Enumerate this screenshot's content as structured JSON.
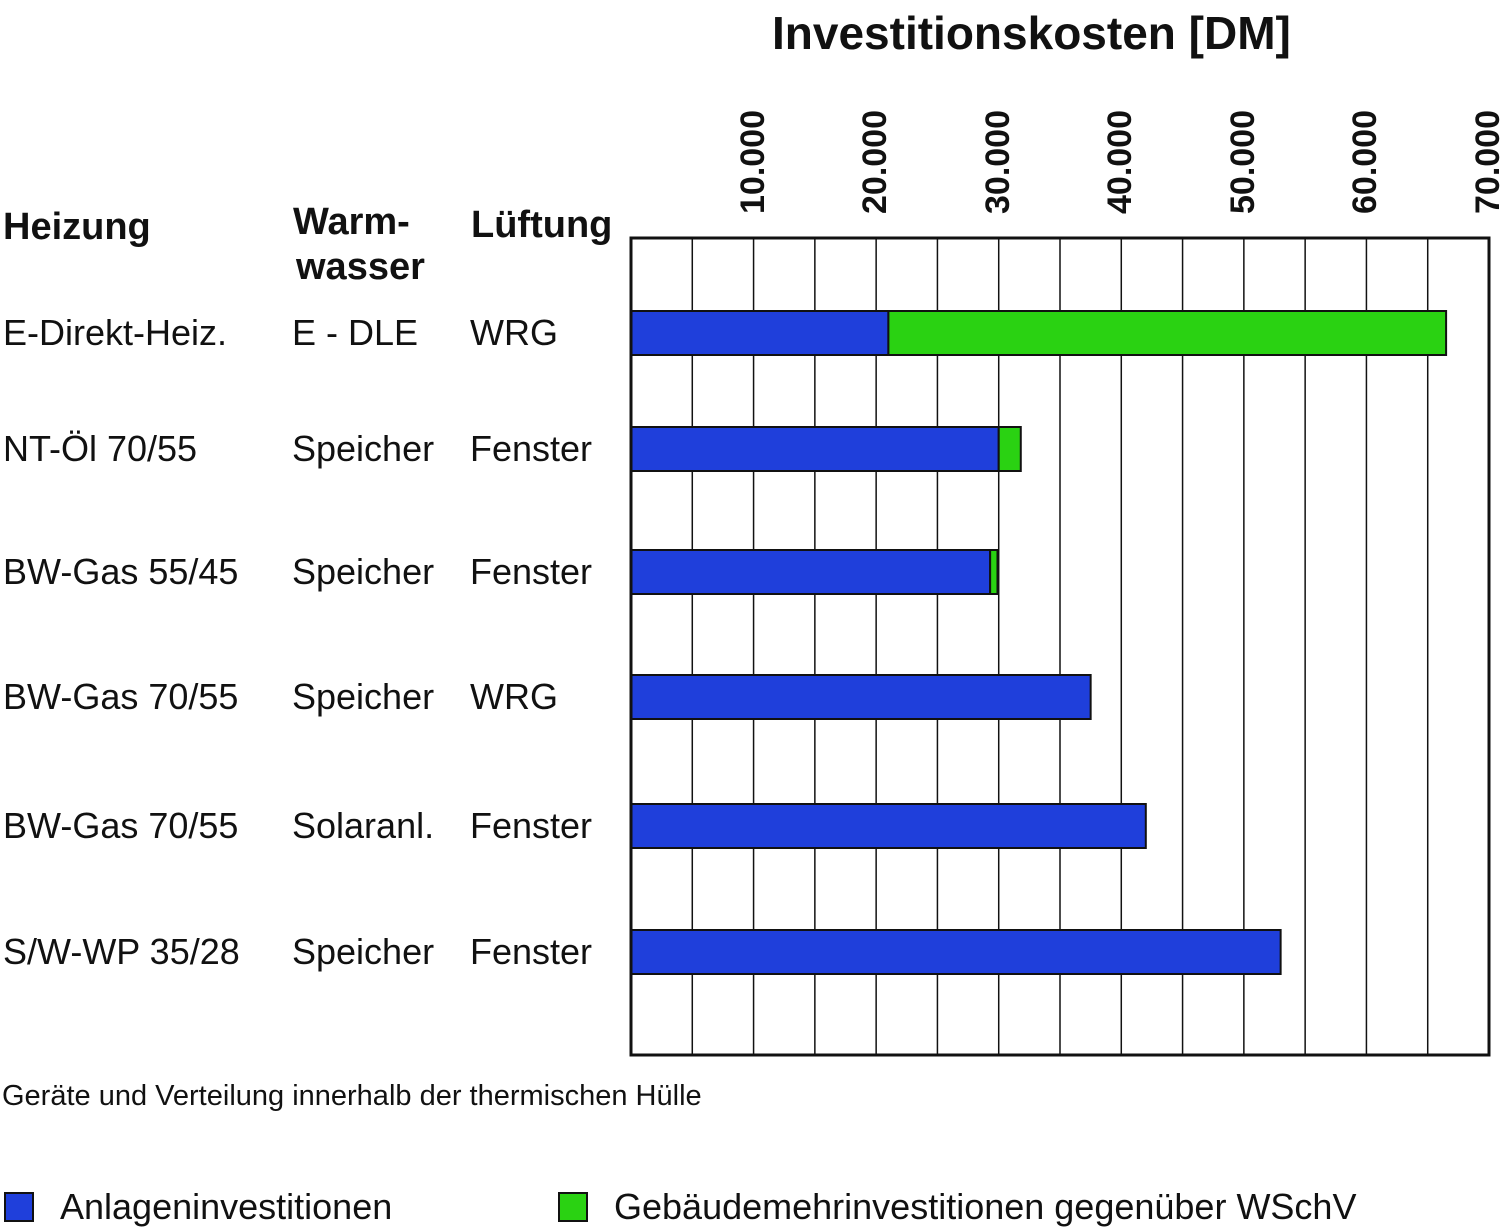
{
  "chart_data": {
    "type": "bar",
    "orientation": "horizontal",
    "stacked": true,
    "title": "Investitionskosten  [DM]",
    "xlim": [
      0,
      70000
    ],
    "x_ticks": [
      "10.000",
      "20.000",
      "30.000",
      "40.000",
      "50.000",
      "60.000",
      "70.000"
    ],
    "x_tick_values": [
      10000,
      20000,
      30000,
      40000,
      50000,
      60000,
      70000
    ],
    "grid": true,
    "column_headers": {
      "heizung": "Heizung",
      "warmwasser_line1": "Warm-",
      "warmwasser_line2": "wasser",
      "lueftung": "Lüftung"
    },
    "rows": [
      {
        "heizung": "E-Direkt-Heiz.",
        "warmwasser": "E - DLE",
        "lueftung": "WRG"
      },
      {
        "heizung": "NT-Öl 70/55",
        "warmwasser": "Speicher",
        "lueftung": "Fenster"
      },
      {
        "heizung": "BW-Gas 55/45",
        "warmwasser": "Speicher",
        "lueftung": "Fenster"
      },
      {
        "heizung": "BW-Gas 70/55",
        "warmwasser": "Speicher",
        "lueftung": "WRG"
      },
      {
        "heizung": "BW-Gas 70/55",
        "warmwasser": "Solaranl.",
        "lueftung": "Fenster"
      },
      {
        "heizung": "S/W-WP 35/28",
        "warmwasser": "Speicher",
        "lueftung": "Fenster"
      }
    ],
    "series": [
      {
        "name": "Anlageninvestitionen",
        "color": "#1f3fdb",
        "values": [
          21000,
          30000,
          29300,
          37500,
          42000,
          53000
        ]
      },
      {
        "name": "Gebäudemehrinvestitionen gegenüber WSchV",
        "color": "#2ad212",
        "values": [
          45500,
          1800,
          600,
          0,
          0,
          0
        ]
      }
    ],
    "legend_placement": "bottom",
    "footnote": "Geräte und Verteilung innerhalb der thermischen Hülle"
  }
}
